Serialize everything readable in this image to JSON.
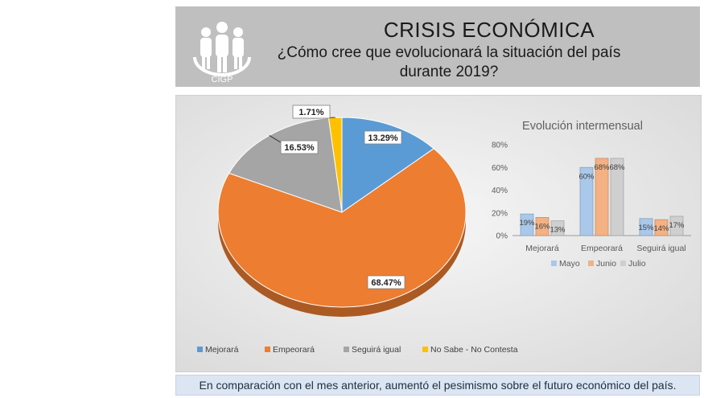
{
  "header": {
    "logo_text": "CIGP",
    "title": "CRISIS ECONÓMICA",
    "subtitle_line1": "¿Cómo cree que evolucionará la situación del país",
    "subtitle_line2": "durante 2019?"
  },
  "footer": {
    "text": "En comparación con el mes anterior, aumentó el pesimismo sobre el futuro económico del país."
  },
  "chart_data": [
    {
      "type": "pie",
      "categories": [
        "Mejorará",
        "Empeorará",
        "Seguirá igual",
        "No Sabe - No Contesta"
      ],
      "values": [
        13.29,
        68.47,
        16.53,
        1.71
      ],
      "labels": [
        "13.29%",
        "68.47%",
        "16.53%",
        "1.71%"
      ],
      "colors": [
        "#5b9bd5",
        "#ed7d31",
        "#a5a5a5",
        "#ffc000"
      ],
      "legend_position": "bottom"
    },
    {
      "type": "bar",
      "title": "Evolución intermensual",
      "categories": [
        "Mejorará",
        "Empeorará",
        "Seguirá igual"
      ],
      "series": [
        {
          "name": "Mayo",
          "values": [
            19,
            60,
            15
          ],
          "labels": [
            "19%",
            "60%",
            "15%"
          ],
          "color": "#a9c8ea"
        },
        {
          "name": "Junio",
          "values": [
            16,
            68,
            14
          ],
          "labels": [
            "16%",
            "68%",
            "14%"
          ],
          "color": "#f4b183"
        },
        {
          "name": "Julio",
          "values": [
            13,
            68,
            17
          ],
          "labels": [
            "13%",
            "68%",
            "17%"
          ],
          "color": "#cfcfcf"
        }
      ],
      "y_ticks": [
        "0%",
        "20%",
        "40%",
        "60%",
        "80%"
      ],
      "ylim": [
        0,
        80
      ],
      "grid": false,
      "legend_position": "bottom"
    }
  ]
}
